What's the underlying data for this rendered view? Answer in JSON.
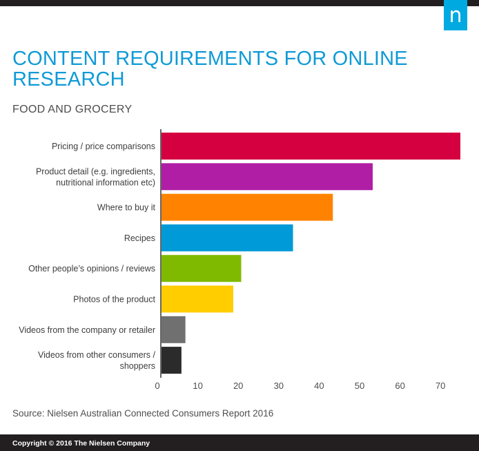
{
  "header": {
    "logo_letter": "n"
  },
  "title": "CONTENT REQUIREMENTS FOR ONLINE RESEARCH",
  "subtitle": "FOOD AND GROCERY",
  "source": "Source: Nielsen Australian Connected Consumers Report 2016",
  "footer": {
    "copyright": "Copyright © 2016 The Nielsen Company"
  },
  "chart_data": {
    "type": "bar",
    "orientation": "horizontal",
    "title": "CONTENT REQUIREMENTS FOR ONLINE RESEARCH",
    "subtitle": "FOOD AND GROCERY",
    "xlabel": "",
    "ylabel": "",
    "xlim": [
      0,
      75
    ],
    "xticks": [
      0,
      10,
      20,
      30,
      40,
      50,
      60,
      70
    ],
    "grid": false,
    "legend": "none",
    "categories": [
      [
        "Pricing / price comparisons"
      ],
      [
        "Product detail (e.g. ingredients,",
        "nutritional information etc)"
      ],
      [
        "Where to buy it"
      ],
      [
        "Recipes"
      ],
      [
        "Other people’s opinions / reviews"
      ],
      [
        "Photos of the product"
      ],
      [
        "Videos from the company or retailer"
      ],
      [
        "Videos from other consumers /",
        "shoppers"
      ]
    ],
    "values": [
      75,
      53,
      43,
      33,
      20,
      18,
      6,
      5
    ],
    "colors": [
      "#d40040",
      "#b01ea5",
      "#ff8300",
      "#009ad8",
      "#7fba00",
      "#ffcd00",
      "#707070",
      "#2b2b2b"
    ]
  }
}
